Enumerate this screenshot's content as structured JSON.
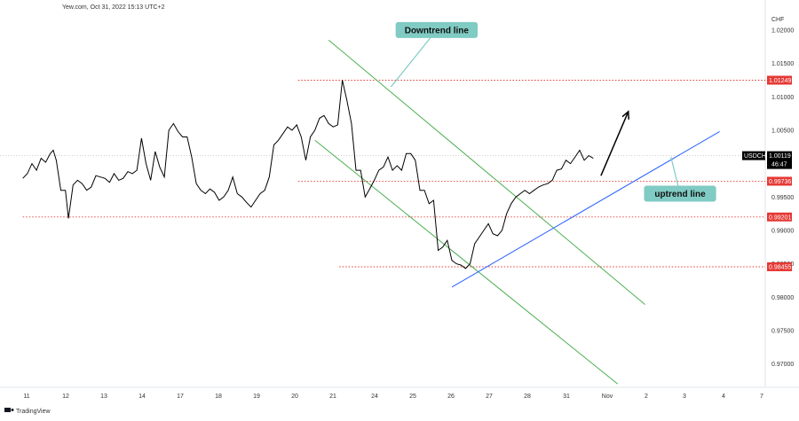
{
  "header": {
    "source": "Yew.com, Oct 31, 2022 15:13 UTC+2"
  },
  "brand": {
    "label": "TradingView"
  },
  "chart_data": {
    "type": "line",
    "currency": "CHF",
    "symbol": "USDCHF",
    "ylim": [
      0.9665,
      1.0245
    ],
    "y_ticks": [
      "1.02000",
      "1.01500",
      "1.01000",
      "1.00500",
      "0.99500",
      "0.99000",
      "0.98500",
      "0.98000",
      "0.97500",
      "0.97000"
    ],
    "y_tick_values": [
      1.02,
      1.015,
      1.01,
      1.005,
      0.995,
      0.99,
      0.985,
      0.98,
      0.975,
      0.97
    ],
    "x_ticks": [
      "11",
      "12",
      "13",
      "14",
      "17",
      "18",
      "19",
      "20",
      "21",
      "24",
      "25",
      "26",
      "27",
      "28",
      "31",
      "Nov",
      "2",
      "3",
      "4",
      "7"
    ],
    "last_price": {
      "label": "1.00119",
      "value": 1.00119,
      "countdown": "46:47"
    },
    "levels": [
      {
        "label": "1.01249",
        "value": 1.01249,
        "x_from": 18.1
      },
      {
        "label": "0.99736",
        "value": 0.99736,
        "x_from": 18.1
      },
      {
        "label": "0.99201",
        "value": 0.99201,
        "x_from": 0.0
      },
      {
        "label": "0.98455",
        "value": 0.98455,
        "x_from": 20.8
      }
    ],
    "trendlines": [
      {
        "name": "downtrend upper",
        "from": [
          20.1,
          1.0185
        ],
        "to": [
          40.9,
          0.9789
        ],
        "color": "#4caf50"
      },
      {
        "name": "downtrend lower",
        "from": [
          19.2,
          1.0035
        ],
        "to": [
          39.1,
          0.967
        ],
        "color": "#4caf50"
      },
      {
        "name": "uptrend",
        "from": [
          28.2,
          0.9815
        ],
        "to": [
          45.8,
          1.0048
        ],
        "color": "#2962ff"
      }
    ],
    "arrow": {
      "from": [
        38.0,
        0.9982
      ],
      "to": [
        39.8,
        1.0078
      ]
    },
    "annotations": [
      {
        "text": "Downtrend line",
        "at": [
          27.2,
          1.02
        ],
        "pointer_to": [
          24.2,
          1.0115
        ]
      },
      {
        "text": "uptrend line",
        "at": [
          43.2,
          0.9955
        ],
        "pointer_to": [
          42.6,
          1.001
        ]
      }
    ],
    "x": [
      0,
      0.3,
      0.6,
      0.9,
      1.2,
      1.5,
      1.8,
      2.0,
      2.2,
      2.5,
      2.8,
      3.0,
      3.3,
      3.6,
      3.9,
      4.2,
      4.5,
      4.8,
      5.1,
      5.4,
      5.7,
      6.0,
      6.3,
      6.6,
      6.9,
      7.2,
      7.5,
      7.8,
      8.1,
      8.4,
      8.7,
      9.0,
      9.3,
      9.6,
      9.9,
      10.2,
      10.5,
      10.8,
      11.1,
      11.4,
      11.7,
      12.0,
      12.3,
      12.6,
      12.9,
      13.2,
      13.5,
      13.8,
      14.1,
      14.4,
      14.7,
      15.0,
      15.3,
      15.6,
      15.9,
      16.2,
      16.5,
      16.8,
      17.1,
      17.4,
      17.7,
      18.0,
      18.3,
      18.6,
      18.9,
      19.2,
      19.5,
      19.8,
      20.1,
      20.4,
      20.7,
      21.0,
      21.3,
      21.6,
      21.9,
      22.2,
      22.5,
      22.8,
      23.1,
      23.4,
      23.7,
      24.0,
      24.3,
      24.6,
      24.9,
      25.2,
      25.5,
      25.8,
      26.1,
      26.4,
      26.7,
      27.0,
      27.3,
      27.6,
      27.9,
      28.2,
      28.5,
      28.8,
      29.1,
      29.4,
      29.7,
      30.0,
      30.3,
      30.6,
      30.9,
      31.2,
      31.5,
      31.8,
      32.1,
      32.4,
      32.7,
      33.0,
      33.3,
      33.6,
      33.9,
      34.2,
      34.5,
      34.8,
      35.1,
      35.4,
      35.7,
      36.0,
      36.3,
      36.6,
      36.9,
      37.2,
      37.5
    ],
    "values": [
      0.9978,
      0.9985,
      1.0,
      0.999,
      1.0008,
      1.0002,
      1.0015,
      1.002,
      1.0005,
      0.996,
      0.996,
      0.9918,
      0.9968,
      0.9975,
      0.997,
      0.996,
      0.9965,
      0.9982,
      0.998,
      0.9978,
      0.9972,
      0.9985,
      0.9975,
      0.9978,
      0.9988,
      0.9985,
      0.999,
      1.0038,
      1.0,
      0.9975,
      1.0018,
      0.9995,
      0.998,
      1.005,
      1.006,
      1.0048,
      1.004,
      1.004,
      1.001,
      0.997,
      0.996,
      0.9955,
      0.9962,
      0.9957,
      0.9945,
      0.995,
      0.996,
      0.998,
      0.9955,
      0.995,
      0.9942,
      0.9935,
      0.9945,
      0.9955,
      0.996,
      0.998,
      1.0028,
      1.0035,
      1.0045,
      1.0055,
      1.005,
      1.0058,
      1.004,
      1.0005,
      1.004,
      1.005,
      1.0068,
      1.0072,
      1.006,
      1.0055,
      1.0058,
      1.0125,
      1.0095,
      1.006,
      0.999,
      0.999,
      0.995,
      0.9962,
      0.9975,
      0.999,
      0.9995,
      1.001,
      0.999,
      0.9997,
      0.999,
      1.0015,
      1.0015,
      1.0005,
      0.996,
      0.996,
      0.994,
      0.9945,
      0.987,
      0.9875,
      0.9885,
      0.9855,
      0.985,
      0.9848,
      0.9843,
      0.985,
      0.988,
      0.989,
      0.99,
      0.991,
      0.9895,
      0.9892,
      0.99,
      0.9925,
      0.994,
      0.995,
      0.9955,
      0.996,
      0.9955,
      0.996,
      0.9965,
      0.9968,
      0.997,
      0.9975,
      0.999,
      0.9992,
      1.0005,
      1.0,
      1.001,
      1.002,
      1.0005,
      1.0012,
      1.0008
    ]
  }
}
